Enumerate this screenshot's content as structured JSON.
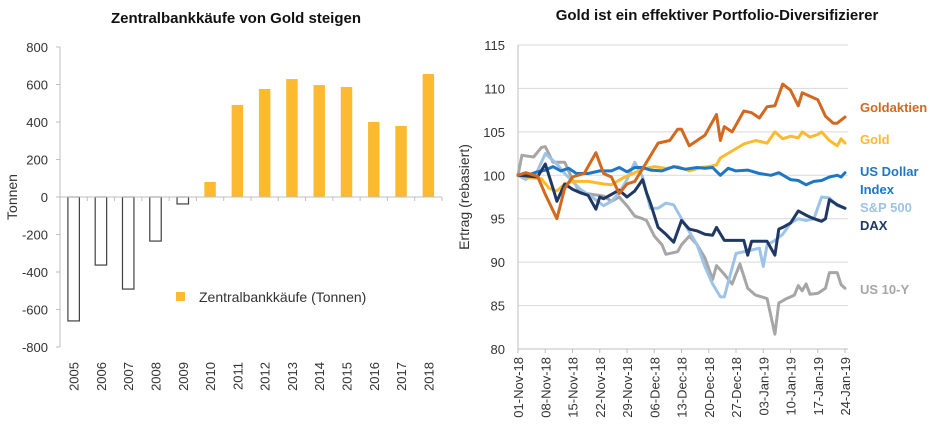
{
  "chart_data": [
    {
      "type": "bar",
      "title": "Zentralbankkäufe von Gold steigen",
      "xlabel": "",
      "ylabel": "Tonnen",
      "ylim": [
        -800,
        800
      ],
      "yticks": [
        800,
        600,
        400,
        200,
        0,
        -200,
        -400,
        -600,
        -800
      ],
      "categories": [
        "2005",
        "2006",
        "2007",
        "2008",
        "2009",
        "2010",
        "2011",
        "2012",
        "2013",
        "2014",
        "2015",
        "2016",
        "2017",
        "2018"
      ],
      "series": [
        {
          "name": "Zentralbankkäufe (Tonnen)",
          "values": [
            -661,
            -363,
            -491,
            -235,
            -37,
            80,
            491,
            576,
            629,
            597,
            587,
            400,
            379,
            656
          ],
          "positive_color": "#FBBA2F",
          "negative_style": "outline"
        }
      ],
      "legend": {
        "label": "Zentralbankkäufe (Tonnen)",
        "position": "bottom-center",
        "color": "#FBBA2F"
      },
      "grid": false
    },
    {
      "type": "line",
      "title": "Gold ist ein effektiver Portfolio-Diversifizierer",
      "xlabel": "",
      "ylabel": "Ertrag (rebasiert)",
      "ylim": [
        80,
        115
      ],
      "yticks": [
        115,
        110,
        105,
        100,
        95,
        90,
        85,
        80
      ],
      "x_unit": "days since 01-Nov-18",
      "xlim": [
        0,
        84
      ],
      "xtick_labels": [
        "01-Nov-18",
        "08-Nov-18",
        "15-Nov-18",
        "22-Nov-18",
        "29-Nov-18",
        "06-Dec-18",
        "13-Dec-18",
        "20-Dec-18",
        "27-Dec-18",
        "03-Jan-19",
        "10-Jan-19",
        "17-Jan-19",
        "24-Jan-19"
      ],
      "grid": true,
      "legend_position": "right (inline labels)",
      "series": [
        {
          "name": "Goldaktien",
          "color": "#D2691E",
          "x": [
            0,
            2,
            5,
            7,
            10,
            12,
            14,
            17,
            20,
            22,
            24,
            26,
            28,
            30,
            33,
            36,
            39,
            41,
            42,
            44,
            46,
            48,
            51,
            52,
            53,
            55,
            58,
            60,
            62,
            64,
            66,
            68,
            70,
            72,
            73,
            74,
            77,
            79,
            81,
            82,
            84
          ],
          "y": [
            100,
            100.3,
            99.9,
            97.8,
            95.0,
            98.5,
            99.8,
            100.2,
            102.6,
            100.2,
            99.8,
            97.9,
            99.0,
            99.3,
            101.5,
            103.7,
            104.0,
            105.3,
            105.3,
            103.4,
            104.0,
            104.6,
            107.0,
            104.0,
            105.6,
            105.0,
            107.4,
            107.2,
            106.6,
            107.9,
            108.0,
            110.5,
            109.8,
            108.0,
            109.5,
            109.3,
            108.7,
            106.8,
            106.0,
            106.0,
            106.7
          ]
        },
        {
          "name": "Gold",
          "color": "#FBBA2F",
          "x": [
            0,
            3,
            6,
            8,
            10,
            12,
            14,
            18,
            22,
            24,
            27,
            30,
            32,
            35,
            38,
            41,
            44,
            47,
            49,
            51,
            52,
            55,
            58,
            61,
            64,
            66,
            68,
            70,
            72,
            73,
            75,
            77,
            78,
            80,
            82,
            83,
            84
          ],
          "y": [
            100,
            99.7,
            99.6,
            98.5,
            98.2,
            99.0,
            99.3,
            99.3,
            99.0,
            98.9,
            99.7,
            100.3,
            100.7,
            101.0,
            100.8,
            101.0,
            100.5,
            100.9,
            101.0,
            101.2,
            102.0,
            102.8,
            103.6,
            104.0,
            103.7,
            105.0,
            104.2,
            104.5,
            104.3,
            105.0,
            104.4,
            104.7,
            105.0,
            104.0,
            103.4,
            104.2,
            103.7
          ]
        },
        {
          "name": "US Dollar Index",
          "color": "#1F77C4",
          "x": [
            0,
            3,
            5,
            7,
            9,
            11,
            13,
            15,
            18,
            21,
            24,
            26,
            28,
            30,
            32,
            34,
            37,
            40,
            43,
            46,
            48,
            50,
            52,
            54,
            56,
            59,
            62,
            65,
            67,
            70,
            72,
            74,
            76,
            78,
            80,
            82,
            83,
            84
          ],
          "y": [
            100,
            100.1,
            100.4,
            100.6,
            101.0,
            100.5,
            100.8,
            100.2,
            100.2,
            100.5,
            100.5,
            100.9,
            100.4,
            100.9,
            100.9,
            100.6,
            100.5,
            101.0,
            100.7,
            100.9,
            100.8,
            100.9,
            100.0,
            100.8,
            100.5,
            100.6,
            100.2,
            100.0,
            100.3,
            99.5,
            99.4,
            98.9,
            99.3,
            99.4,
            99.8,
            100.0,
            99.8,
            100.3
          ]
        },
        {
          "name": "S&P 500",
          "color": "#9DC3E6",
          "x": [
            0,
            2,
            5,
            7,
            10,
            12,
            14,
            16,
            19,
            22,
            24,
            26,
            28,
            30,
            32,
            34,
            36,
            38,
            40,
            42,
            44,
            46,
            48,
            50,
            52,
            53,
            56,
            59,
            62,
            63,
            64,
            66,
            68,
            70,
            72,
            74,
            76,
            78,
            80,
            82,
            84
          ],
          "y": [
            100,
            99.5,
            100.5,
            102.5,
            101.3,
            100.2,
            99.3,
            98.4,
            97.5,
            96.5,
            97.0,
            98.0,
            99.5,
            101.5,
            99.8,
            96.2,
            96.2,
            96.8,
            96.6,
            95.0,
            93.5,
            92.0,
            89.5,
            87.5,
            86.0,
            86.0,
            91.0,
            91.3,
            91.6,
            89.5,
            92.0,
            92.5,
            93.2,
            94.5,
            95.0,
            94.8,
            95.0,
            97.5,
            97.4,
            96.5,
            96.2
          ]
        },
        {
          "name": "DAX",
          "color": "#1F3864",
          "x": [
            0,
            3,
            5,
            7,
            9,
            10,
            12,
            14,
            16,
            18,
            20,
            21,
            22,
            24,
            26,
            28,
            30,
            32,
            33,
            34,
            36,
            38,
            40,
            42,
            44,
            46,
            48,
            50,
            51,
            53,
            56,
            58,
            59,
            60,
            62,
            64,
            66,
            67,
            68,
            70,
            72,
            74,
            76,
            78,
            79,
            80,
            82,
            84
          ],
          "y": [
            100,
            99.9,
            99.8,
            101.3,
            98.5,
            97.0,
            99.0,
            98.4,
            98.0,
            97.7,
            96.1,
            97.5,
            97.3,
            97.8,
            98.3,
            97.5,
            98.2,
            99.5,
            98.0,
            96.8,
            94.0,
            93.2,
            92.3,
            94.8,
            93.8,
            93.6,
            93.2,
            93.1,
            94.0,
            92.5,
            92.5,
            92.5,
            90.8,
            92.4,
            92.4,
            92.4,
            90.8,
            93.8,
            94.0,
            94.5,
            95.9,
            95.4,
            95.0,
            94.7,
            95.0,
            97.2,
            96.6,
            96.2
          ]
        },
        {
          "name": "US 10-Y",
          "color": "#A6A6A6",
          "x": [
            0,
            1,
            4,
            6,
            7,
            9,
            12,
            14,
            16,
            19,
            22,
            24,
            26,
            28,
            30,
            32,
            33,
            35,
            37,
            38,
            41,
            42,
            44,
            46,
            48,
            50,
            51,
            53,
            55,
            57,
            59,
            61,
            64,
            66,
            67,
            69,
            71,
            72,
            73,
            74,
            75,
            77,
            79,
            80,
            82,
            83,
            84
          ],
          "y": [
            100,
            102.3,
            102.1,
            103.2,
            103.3,
            101.5,
            101.5,
            99.5,
            98.0,
            97.8,
            97.6,
            97.0,
            97.5,
            96.5,
            95.3,
            95.0,
            94.8,
            93.0,
            92.0,
            90.9,
            91.2,
            92.0,
            93.0,
            92.0,
            90.5,
            88.0,
            89.6,
            88.6,
            87.5,
            89.8,
            87.0,
            86.2,
            85.8,
            81.7,
            85.3,
            85.8,
            86.2,
            87.3,
            86.7,
            87.5,
            86.3,
            86.4,
            87.0,
            88.8,
            88.8,
            87.4,
            87.0
          ]
        }
      ]
    }
  ]
}
